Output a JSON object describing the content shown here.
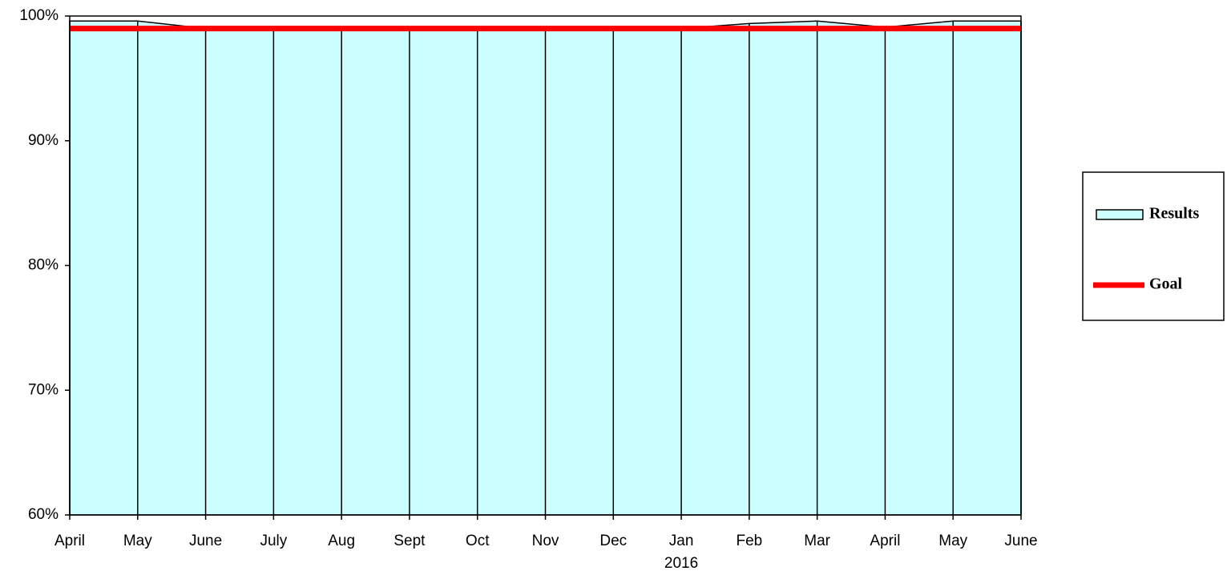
{
  "chart_data": {
    "type": "area",
    "categories": [
      "April",
      "May",
      "June",
      "July",
      "Aug",
      "Sept",
      "Oct",
      "Nov",
      "Dec",
      "Jan",
      "Feb",
      "Mar",
      "April",
      "May",
      "June"
    ],
    "category_sublabels": [
      null,
      null,
      null,
      null,
      null,
      null,
      null,
      null,
      null,
      "2016",
      null,
      null,
      null,
      null,
      null
    ],
    "series": [
      {
        "name": "Results",
        "type": "area",
        "color": "#ccffff",
        "values": [
          99.6,
          99.6,
          99.0,
          99.0,
          99.0,
          99.0,
          99.0,
          99.0,
          99.0,
          99.0,
          99.4,
          99.6,
          99.1,
          99.6,
          99.6
        ]
      },
      {
        "name": "Goal",
        "type": "line",
        "color": "#ff0000",
        "values": [
          99,
          99,
          99,
          99,
          99,
          99,
          99,
          99,
          99,
          99,
          99,
          99,
          99,
          99,
          99
        ]
      }
    ],
    "ylim": [
      60,
      100
    ],
    "yticks": [
      {
        "value": 60,
        "label": "60%"
      },
      {
        "value": 70,
        "label": "70%"
      },
      {
        "value": 80,
        "label": "80%"
      },
      {
        "value": 90,
        "label": "90%"
      },
      {
        "value": 100,
        "label": "100%"
      }
    ],
    "legend": "right"
  }
}
